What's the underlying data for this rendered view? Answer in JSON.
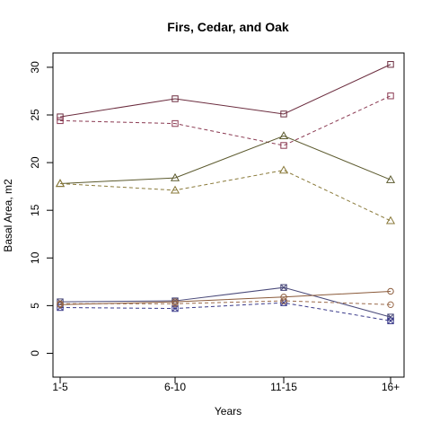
{
  "chart_data": {
    "type": "line",
    "title": "Firs, Cedar, and Oak",
    "xlabel": "Years",
    "ylabel": "Basal Area, m2",
    "categories": [
      "1-5",
      "6-10",
      "11-15",
      "16+"
    ],
    "yticks": [
      0,
      5,
      10,
      15,
      20,
      25,
      30
    ],
    "ylim": [
      -2.5,
      31.5
    ],
    "grid": false,
    "series": [
      {
        "marker": "square",
        "line": "solid",
        "color": "#6b2c3e",
        "values": [
          24.8,
          26.7,
          25.1,
          30.3
        ]
      },
      {
        "marker": "square",
        "line": "dashed",
        "color": "#8b3a52",
        "values": [
          24.4,
          24.1,
          21.8,
          27.0
        ]
      },
      {
        "marker": "triangle",
        "line": "solid",
        "color": "#5c5a2e",
        "values": [
          17.8,
          18.4,
          22.8,
          18.2
        ]
      },
      {
        "marker": "triangle",
        "line": "dashed",
        "color": "#8a7a3a",
        "values": [
          17.8,
          17.1,
          19.2,
          13.9
        ]
      },
      {
        "marker": "square-x",
        "line": "solid",
        "color": "#4a4a7a",
        "values": [
          5.4,
          5.5,
          6.9,
          3.8
        ]
      },
      {
        "marker": "square-x",
        "line": "dashed",
        "color": "#3a3a8a",
        "values": [
          4.8,
          4.7,
          5.3,
          3.4
        ]
      },
      {
        "marker": "circle",
        "line": "solid",
        "color": "#8a5a3a",
        "values": [
          5.1,
          5.4,
          5.9,
          6.5
        ]
      },
      {
        "marker": "circle",
        "line": "dashed",
        "color": "#9a6a4a",
        "values": [
          5.2,
          5.2,
          5.5,
          5.1
        ]
      }
    ]
  }
}
